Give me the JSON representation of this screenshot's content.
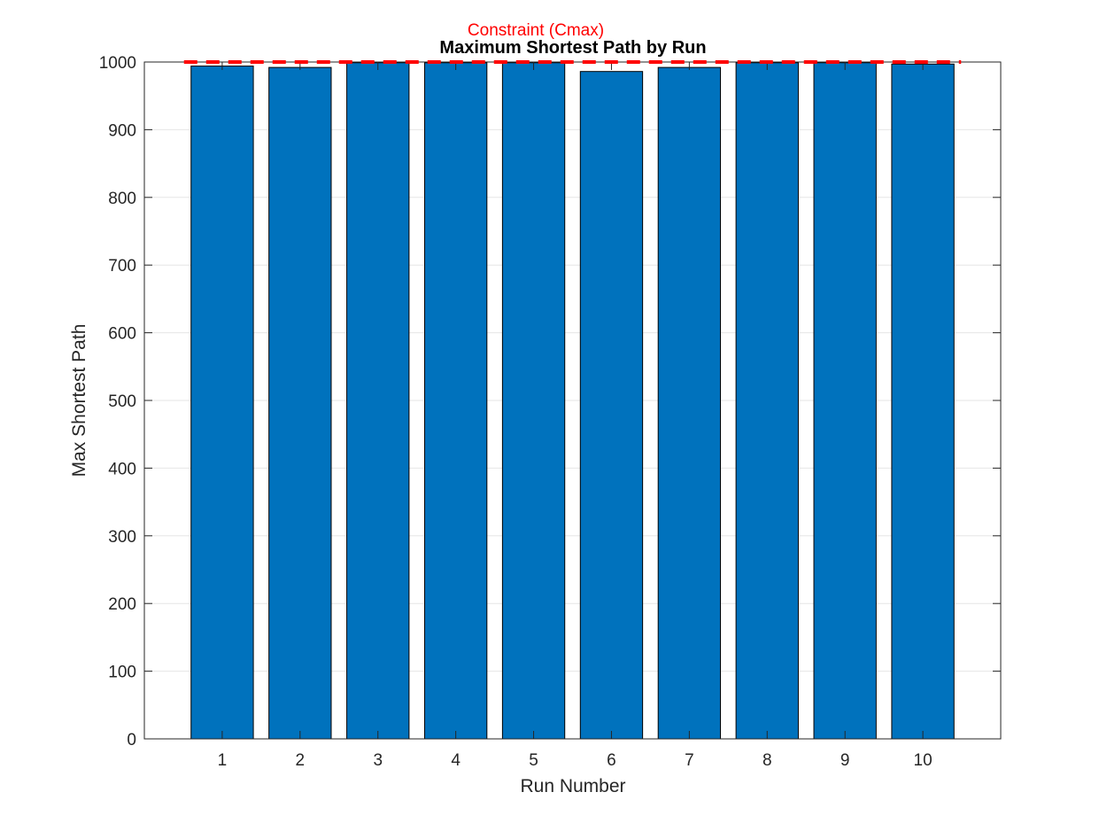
{
  "chart_data": {
    "type": "bar",
    "title": "Maximum Shortest Path by Run",
    "xlabel": "Run Number",
    "ylabel": "Max Shortest Path",
    "categories": [
      "1",
      "2",
      "3",
      "4",
      "5",
      "6",
      "7",
      "8",
      "9",
      "10"
    ],
    "values": [
      994,
      992,
      999,
      999,
      999,
      986,
      992,
      999,
      999,
      997
    ],
    "ylim": [
      0,
      1000
    ],
    "yticks": [
      0,
      100,
      200,
      300,
      400,
      500,
      600,
      700,
      800,
      900,
      1000
    ],
    "grid": true,
    "bar_color": "#0072BD",
    "reference_line": {
      "value": 1000,
      "label": "Constraint (Cmax)",
      "color": "#FF0000",
      "style": "dashed"
    }
  }
}
